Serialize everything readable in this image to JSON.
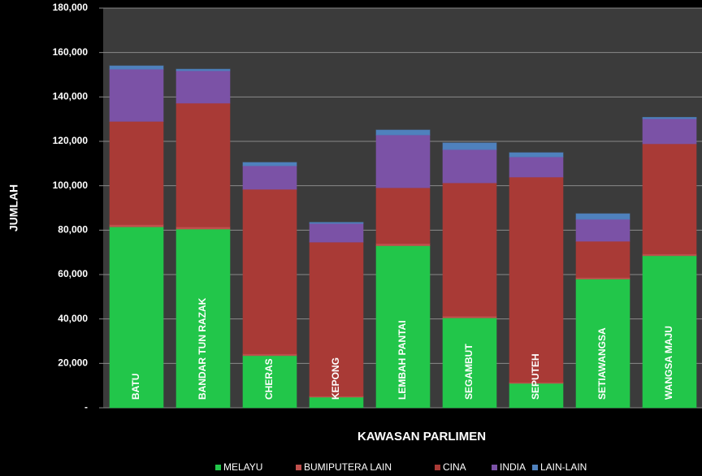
{
  "chart_data": {
    "type": "stacked_bar",
    "x_label": "KAWASAN PARLIMEN",
    "y_label": "JUMLAH",
    "categories": [
      "BATU",
      "BANDAR TUN RAZAK",
      "CHERAS",
      "KEPONG",
      "LEMBAH PANTAI",
      "SEGAMBUT",
      "SEPUTEH",
      "SETIAWANGSA",
      "WANGSA MAJU"
    ],
    "series": [
      {
        "name": "MELAYU",
        "color": "#22c64a",
        "values": [
          81500,
          80500,
          23500,
          4800,
          73000,
          40500,
          11000,
          58000,
          68500
        ]
      },
      {
        "name": "BUMIPUTERA  LAIN",
        "color": "#c0504d",
        "values": [
          1000,
          1000,
          800,
          500,
          1000,
          800,
          500,
          700,
          800
        ]
      },
      {
        "name": "CINA",
        "color": "#a93a36",
        "values": [
          46500,
          55700,
          74100,
          69300,
          25100,
          60000,
          92400,
          16300,
          49600
        ]
      },
      {
        "name": "INDIA",
        "color": "#7b52a6",
        "values": [
          23500,
          14600,
          10600,
          8400,
          23800,
          15000,
          9100,
          9900,
          11300
        ]
      },
      {
        "name": "LAIN-LAIN",
        "color": "#4f81bd",
        "values": [
          1500,
          700,
          1500,
          500,
          2200,
          3000,
          1900,
          2500,
          600
        ]
      }
    ],
    "ylim": [
      0,
      180000
    ],
    "yticks": [
      {
        "value": 0,
        "label": "-"
      },
      {
        "value": 20000,
        "label": "20,000"
      },
      {
        "value": 40000,
        "label": "40,000"
      },
      {
        "value": 60000,
        "label": "60,000"
      },
      {
        "value": 80000,
        "label": "80,000"
      },
      {
        "value": 100000,
        "label": "100,000"
      },
      {
        "value": 120000,
        "label": "120,000"
      },
      {
        "value": 140000,
        "label": "140,000"
      },
      {
        "value": 160000,
        "label": "160,000"
      },
      {
        "value": 180000,
        "label": "180,000"
      }
    ],
    "grid": true,
    "legend": "bottom"
  }
}
